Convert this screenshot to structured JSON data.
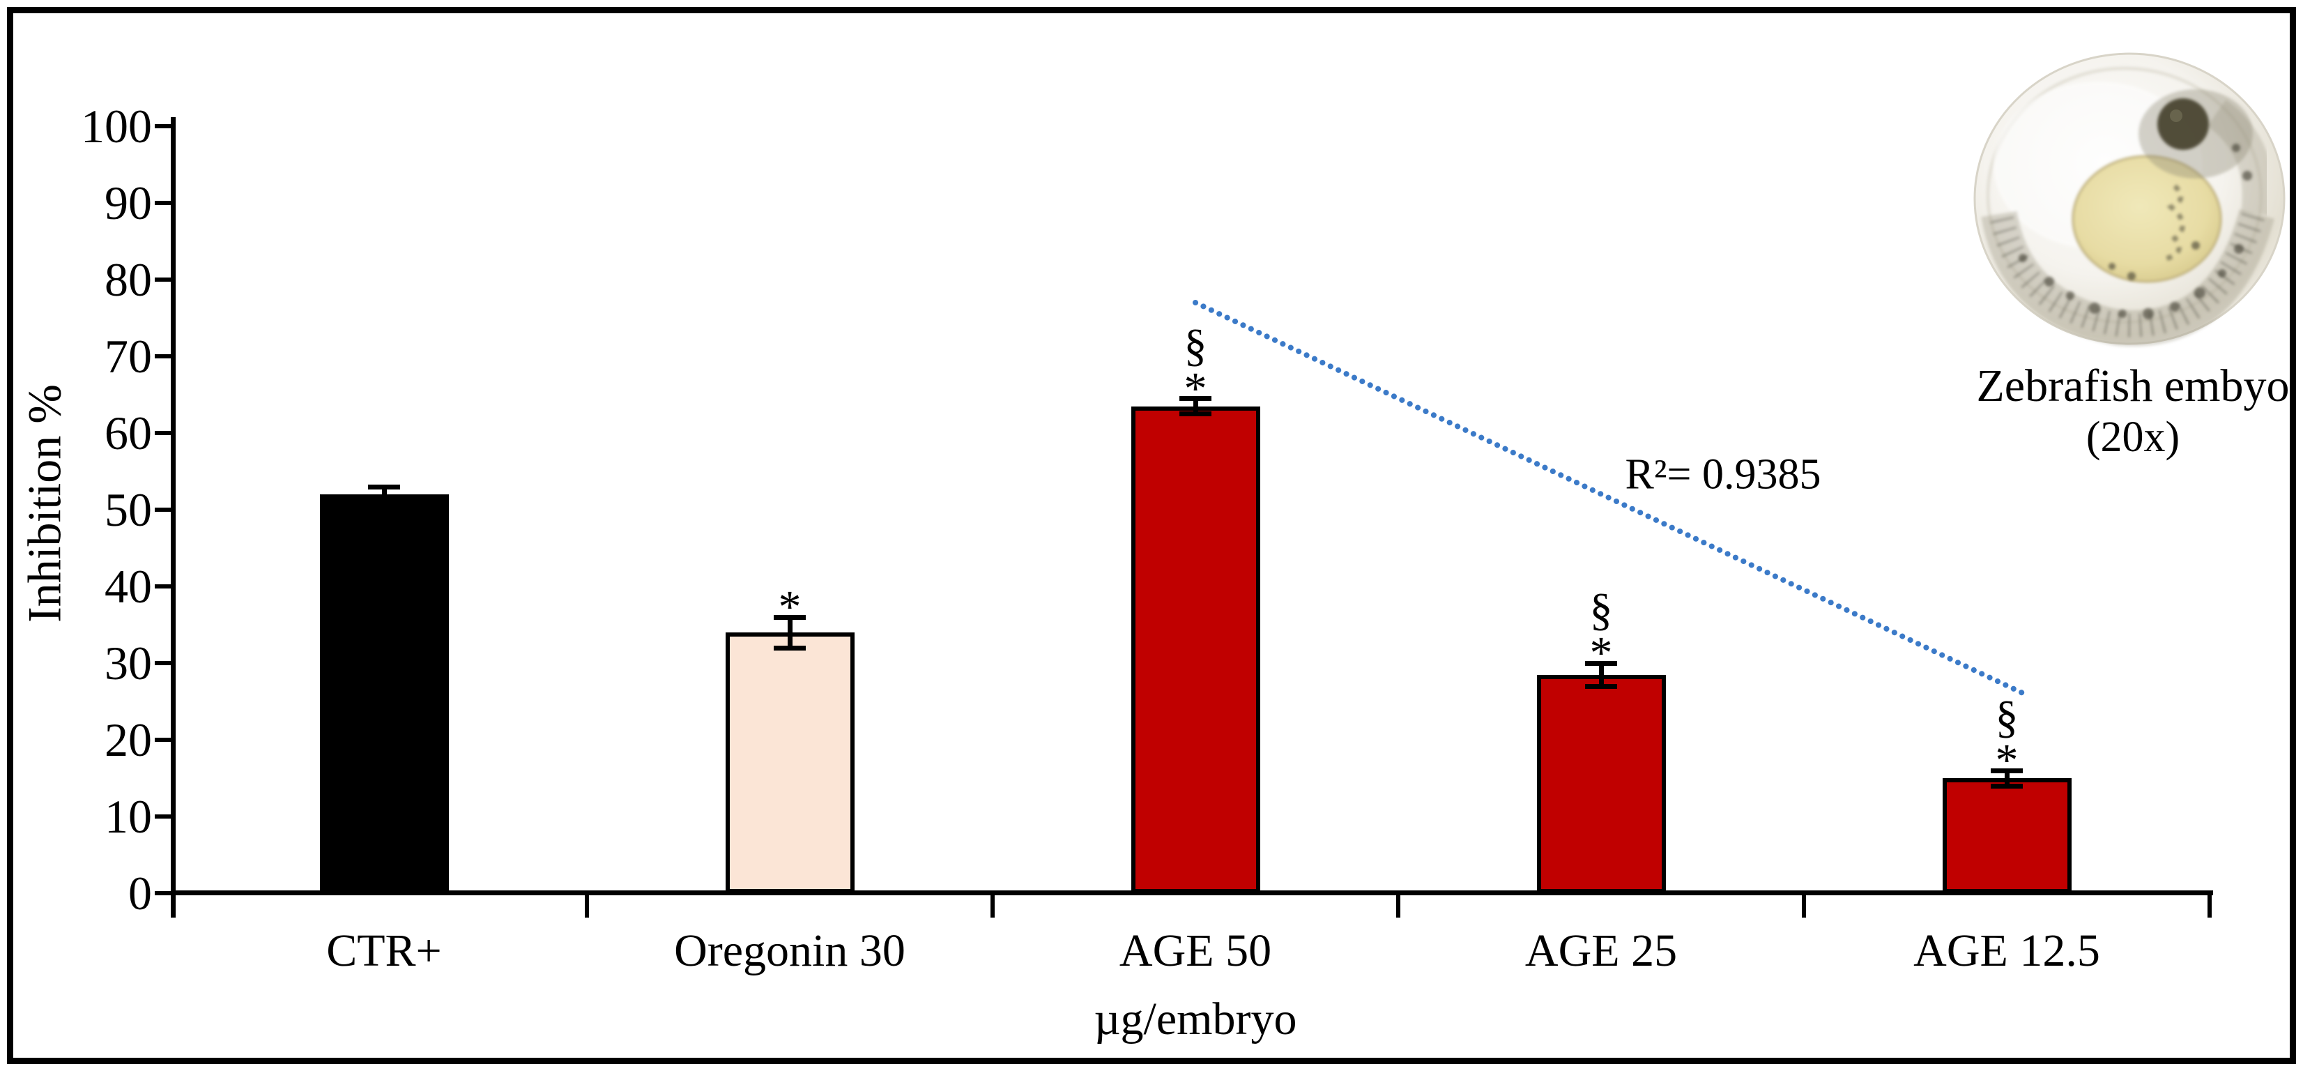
{
  "chart_data": {
    "type": "bar",
    "title": "",
    "xlabel": "µg/embryo",
    "ylabel": "Inhibition %",
    "ylim": [
      0,
      100
    ],
    "yticks": [
      0,
      10,
      20,
      30,
      40,
      50,
      60,
      70,
      80,
      90,
      100
    ],
    "grid": false,
    "categories": [
      "CTR+",
      "Oregonin 30",
      "AGE 50",
      "AGE 25",
      "AGE 12.5"
    ],
    "values": [
      52,
      34,
      63.5,
      28.5,
      15
    ],
    "errors": [
      1,
      2,
      1,
      1.5,
      1
    ],
    "bar_colors": [
      "#000000",
      "#FBE5D6",
      "#C00000",
      "#C00000",
      "#C00000"
    ],
    "bar_border_color": "#000000",
    "annotations": [
      [],
      [
        "*"
      ],
      [
        "*",
        "§"
      ],
      [
        "*",
        "§"
      ],
      [
        "*",
        "§"
      ]
    ],
    "trendline": {
      "style": "dotted",
      "color": "#3B7AC8",
      "from_category_index": 2,
      "from_value": 77,
      "to_category_index": 4,
      "to_value": 26,
      "label": "R²= 0.9385"
    }
  },
  "inset": {
    "caption_line1": "Zebrafish embyo",
    "caption_line2": "(20x)"
  }
}
